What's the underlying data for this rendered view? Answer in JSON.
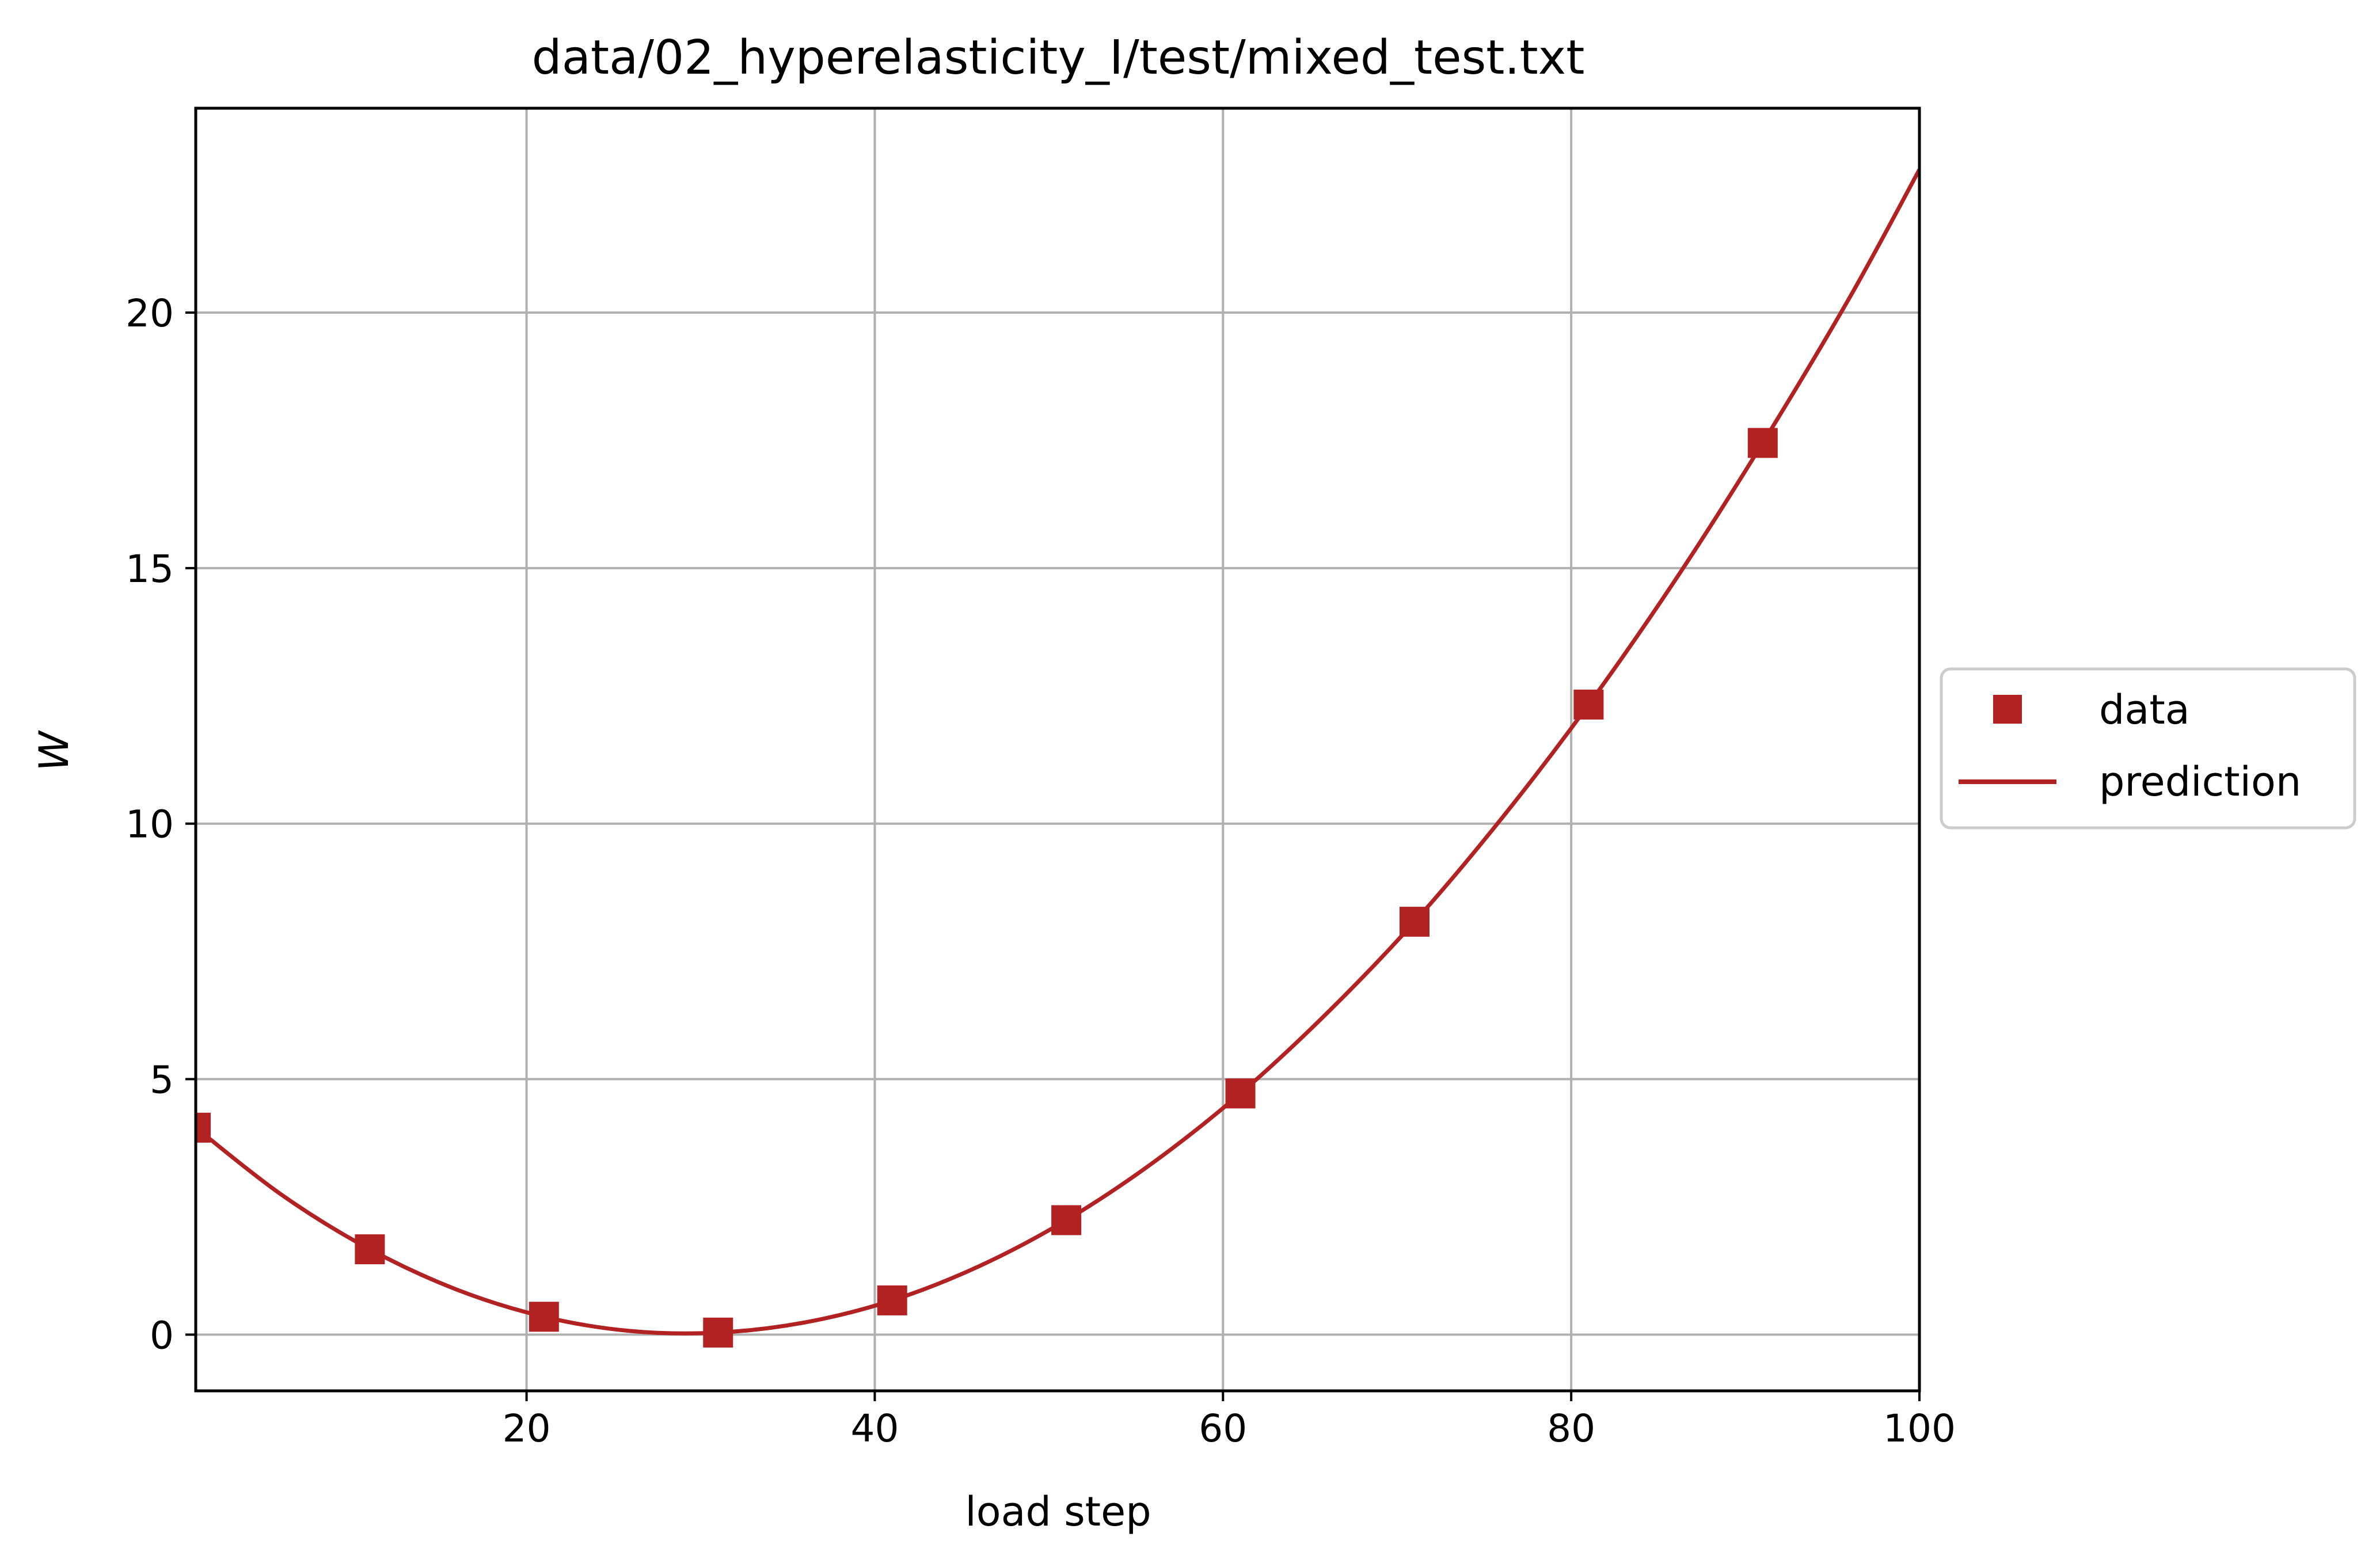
{
  "chart_data": {
    "type": "line",
    "title": "data/02_hyperelasticity_I/test/mixed_test.txt",
    "xlabel": "load step",
    "ylabel": "W",
    "xlim": [
      1,
      100
    ],
    "ylim": [
      -1.1,
      24.0
    ],
    "xticks": [
      20,
      40,
      60,
      80,
      100
    ],
    "yticks": [
      0,
      5,
      10,
      15,
      20
    ],
    "grid": true,
    "legend_position": "center-right outside",
    "color": "#b22222",
    "series": [
      {
        "name": "data",
        "style": "square markers",
        "x": [
          1,
          11,
          21,
          31,
          41,
          51,
          61,
          71,
          81,
          91
        ],
        "y": [
          4.05,
          1.67,
          0.35,
          0.04,
          0.67,
          2.24,
          4.72,
          8.08,
          12.33,
          17.45
        ]
      },
      {
        "name": "prediction",
        "style": "line",
        "x": [
          1,
          6,
          11,
          16,
          21,
          26,
          31,
          36,
          41,
          46,
          51,
          56,
          61,
          66,
          71,
          76,
          81,
          86,
          91,
          96,
          100
        ],
        "y": [
          4.05,
          2.72,
          1.67,
          0.88,
          0.35,
          0.07,
          0.04,
          0.24,
          0.67,
          1.34,
          2.24,
          3.37,
          4.72,
          6.3,
          8.08,
          10.1,
          12.33,
          14.78,
          17.45,
          20.3,
          22.8
        ]
      }
    ]
  }
}
